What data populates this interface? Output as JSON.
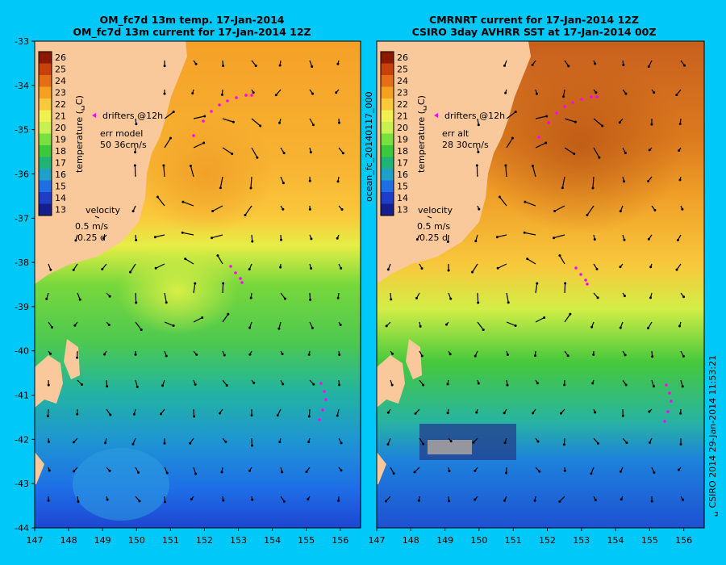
{
  "left_panel": {
    "title_line1": "OM_fc7d 13m temp. 17-Jan-2014",
    "title_line2": "OM_fc7d 13m current for 17-Jan-2014 12Z",
    "drifters_label": "drifters @12h",
    "err_label": "err model",
    "err_value": "50 36cm/s",
    "velocity_label": "velocity",
    "velocity_scale": "0.5 m/s",
    "velocity_time": "0.25 d"
  },
  "right_panel": {
    "title_line1": "CMRNRT current for 17-Jan-2014 12Z",
    "title_line2": "CSIRO 3day AVHRR SST at 17-Jan-2014 00Z",
    "drifters_label": "drifters @12h",
    "err_label": "err alt",
    "err_value": "28 30cm/s",
    "velocity_label": "velocity",
    "velocity_scale": "0.5 m/s",
    "velocity_time": "0.25 d"
  },
  "colorbar": {
    "label": "temperature (␣C)",
    "ticks": [
      "26",
      "25",
      "24",
      "23",
      "22",
      "21",
      "20",
      "19",
      "18",
      "17",
      "16",
      "15",
      "14",
      "13"
    ],
    "colors": [
      "#8b1a00",
      "#c8400a",
      "#e66e14",
      "#f5a01e",
      "#fac83c",
      "#f0f050",
      "#c8f050",
      "#78e040",
      "#3cc83c",
      "#1eb478",
      "#1ea0c8",
      "#1e6ee6",
      "#1e3cc8",
      "#141e8c"
    ]
  },
  "axes": {
    "lat_ticks": [
      "-33",
      "-34",
      "-35",
      "-36",
      "-37",
      "-38",
      "-39",
      "-40",
      "-41",
      "-42",
      "-43",
      "-44"
    ],
    "lon_ticks": [
      "147",
      "148",
      "149",
      "150",
      "151",
      "152",
      "153",
      "154",
      "155",
      "156"
    ]
  },
  "side_label_left": "ocean_fc_20140117_000",
  "side_label_right": "␣ CSIRO 2014   29-Jan-2014 11:53:21",
  "colors": {
    "background": "#00c8f8",
    "land": "#f9c99b"
  }
}
